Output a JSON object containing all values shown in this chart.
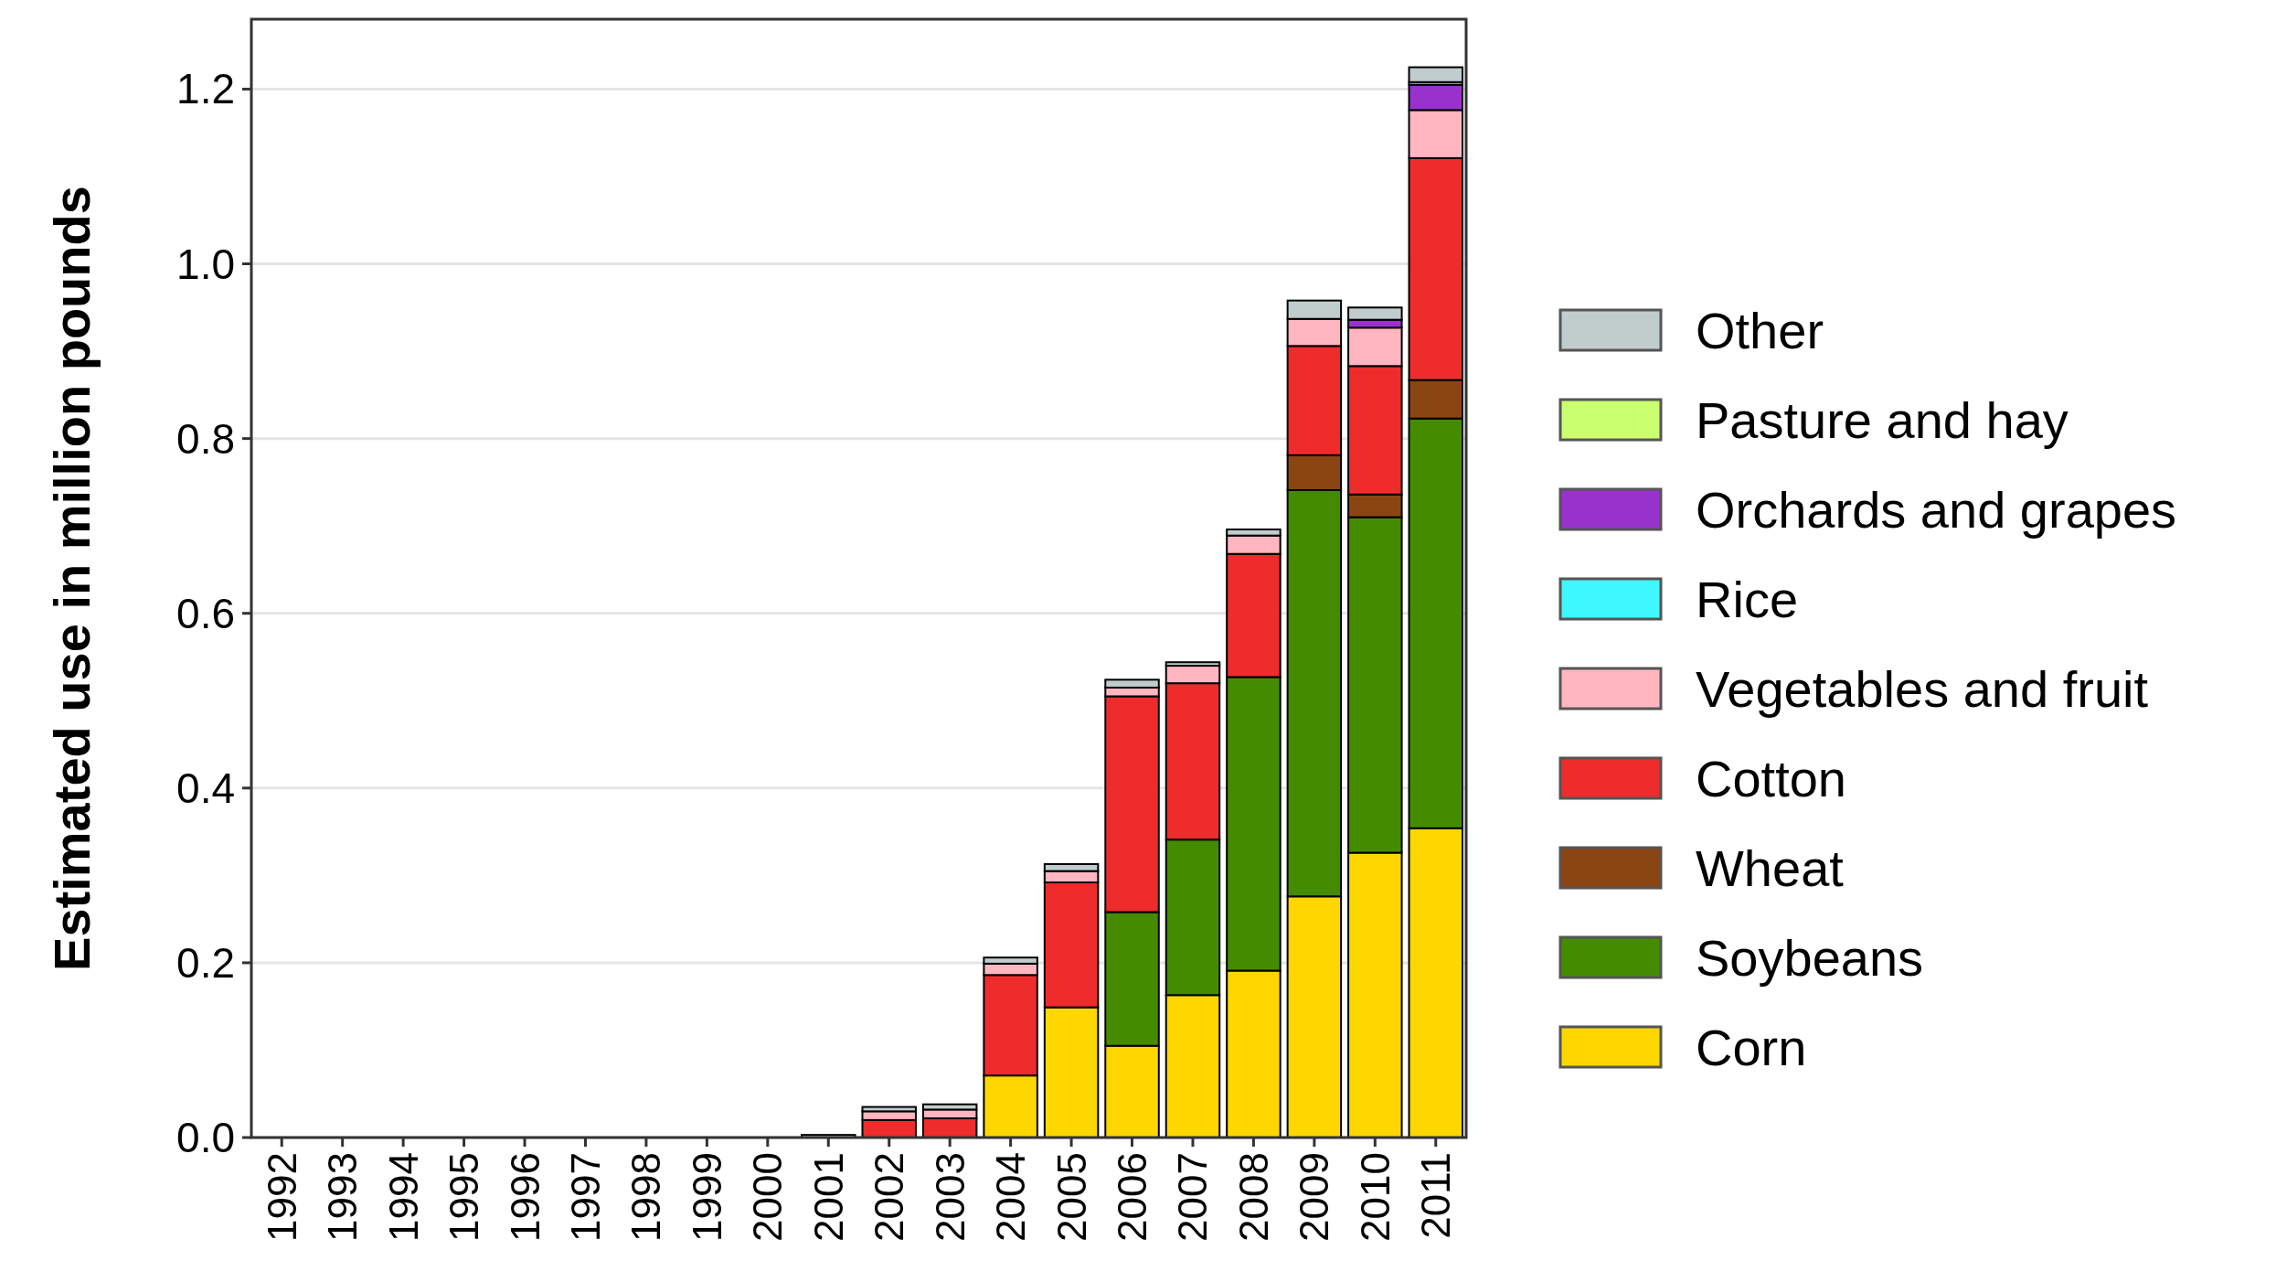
{
  "chart_data": {
    "type": "bar",
    "stacked": true,
    "ylabel": "Estimated use in million pounds",
    "categories": [
      "1992",
      "1993",
      "1994",
      "1995",
      "1996",
      "1997",
      "1998",
      "1999",
      "2000",
      "2001",
      "2002",
      "2003",
      "2004",
      "2005",
      "2006",
      "2007",
      "2008",
      "2009",
      "2010",
      "2011"
    ],
    "series": [
      {
        "name": "Corn",
        "color": "#ffd700",
        "values": [
          0,
          0,
          0,
          0,
          0,
          0,
          0,
          0,
          0,
          0,
          0,
          0,
          0.071,
          0.149,
          0.105,
          0.163,
          0.191,
          0.276,
          0.326,
          0.354
        ]
      },
      {
        "name": "Soybeans",
        "color": "#458b00",
        "values": [
          0,
          0,
          0,
          0,
          0,
          0,
          0,
          0,
          0,
          0,
          0,
          0,
          0,
          0,
          0.153,
          0.178,
          0.336,
          0.465,
          0.384,
          0.469
        ]
      },
      {
        "name": "Wheat",
        "color": "#8b4513",
        "values": [
          0,
          0,
          0,
          0,
          0,
          0,
          0,
          0,
          0,
          0,
          0,
          0,
          0,
          0,
          0,
          0,
          0,
          0.04,
          0.026,
          0.044
        ]
      },
      {
        "name": "Cotton",
        "color": "#ee2c2c",
        "values": [
          0,
          0,
          0,
          0,
          0,
          0,
          0,
          0,
          0,
          null,
          0.02,
          0.022,
          0.115,
          0.143,
          0.247,
          0.179,
          0.141,
          0.125,
          0.147,
          0.254
        ]
      },
      {
        "name": "Vegetables and fruit",
        "color": "#ffb6c1",
        "values": [
          0,
          0,
          0,
          0,
          0,
          0,
          0,
          0,
          0,
          0,
          0.01,
          0.01,
          0.013,
          0.013,
          0.01,
          0.02,
          0.021,
          0.031,
          0.044,
          0.055
        ]
      },
      {
        "name": "Rice",
        "color": "#3ff8ff",
        "values": [
          0,
          0,
          0,
          0,
          0,
          0,
          0,
          0,
          0,
          0,
          0,
          0,
          0,
          0,
          0,
          0,
          0,
          0,
          0,
          0
        ]
      },
      {
        "name": "Orchards and grapes",
        "color": "#9932cc",
        "values": [
          0,
          0,
          0,
          0,
          0,
          0,
          0,
          0,
          0,
          0,
          0,
          0,
          0,
          0,
          0,
          0,
          0,
          0,
          0.009,
          0.029
        ]
      },
      {
        "name": "Pasture and hay",
        "color": "#caff70",
        "values": [
          0,
          0,
          0,
          0,
          0,
          0,
          0,
          0,
          0,
          0,
          0,
          0,
          0,
          0,
          0,
          0,
          0,
          0,
          0,
          0.003
        ]
      },
      {
        "name": "Other",
        "color": "#c1cdcd",
        "values": [
          0,
          0,
          0,
          0,
          0,
          0,
          0,
          0,
          0,
          0.003,
          0.005,
          0.006,
          0.007,
          0.008,
          0.009,
          0.004,
          0.007,
          0.021,
          0.014,
          0.017
        ]
      }
    ],
    "ylim": [
      0,
      1.28
    ],
    "yticks": [
      {
        "value": 0,
        "label": "0.0"
      },
      0.2,
      0.4,
      0.6,
      0.8,
      {
        "value": 1,
        "label": "1.0"
      },
      1.2
    ],
    "grid": "y",
    "legend": "right"
  }
}
